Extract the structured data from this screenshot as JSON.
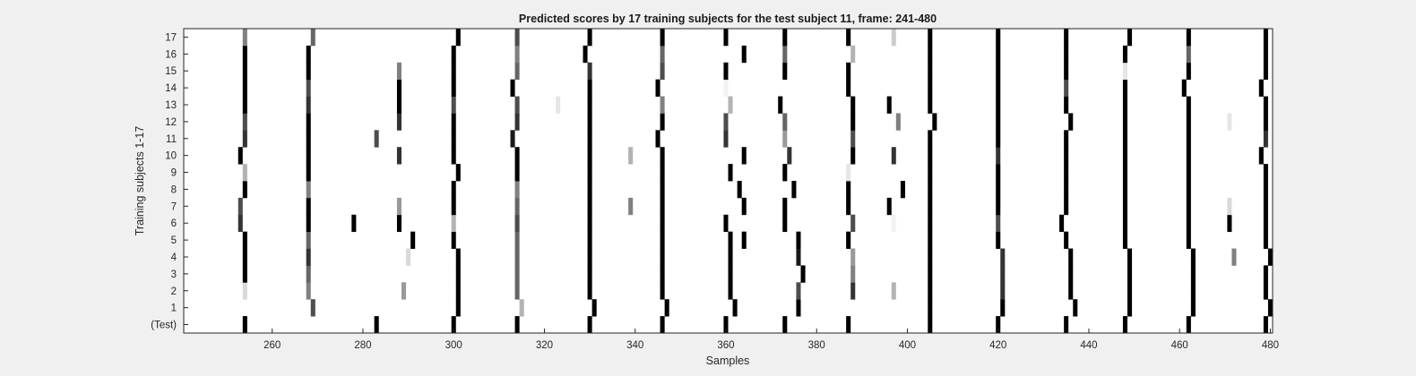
{
  "chart_data": {
    "type": "heatmap",
    "title": "Predicted scores by 17 training subjects for the test subject 11, frame: 241-480",
    "xlabel": "Samples",
    "ylabel": "Training subjects 1-17",
    "xlim": [
      241,
      480
    ],
    "x_ticks": [
      260,
      280,
      300,
      320,
      340,
      360,
      380,
      400,
      420,
      440,
      460,
      480
    ],
    "y_categories": [
      "(Test)",
      "1",
      "2",
      "3",
      "4",
      "5",
      "6",
      "7",
      "8",
      "9",
      "10",
      "11",
      "12",
      "13",
      "14",
      "15",
      "16",
      "17"
    ],
    "colormap": "white (0) to black (1)",
    "background_value": 0,
    "cells": [
      [
        0,
        254,
        1.0
      ],
      [
        0,
        283,
        1.0
      ],
      [
        0,
        300,
        1.0
      ],
      [
        0,
        314,
        1.0
      ],
      [
        0,
        330,
        1.0
      ],
      [
        0,
        346,
        1.0
      ],
      [
        0,
        360,
        1.0
      ],
      [
        0,
        373,
        1.0
      ],
      [
        0,
        387,
        1.0
      ],
      [
        0,
        405,
        1.0
      ],
      [
        0,
        420,
        1.0
      ],
      [
        0,
        435,
        1.0
      ],
      [
        0,
        448,
        1.0
      ],
      [
        0,
        462,
        1.0
      ],
      [
        0,
        479,
        1.0
      ],
      [
        1,
        269,
        0.7
      ],
      [
        1,
        301,
        1.0
      ],
      [
        1,
        315,
        0.3
      ],
      [
        1,
        331,
        1.0
      ],
      [
        1,
        347,
        1.0
      ],
      [
        1,
        362,
        1.0
      ],
      [
        1,
        376,
        1.0
      ],
      [
        1,
        405,
        1.0
      ],
      [
        1,
        421,
        1.0
      ],
      [
        1,
        437,
        1.0
      ],
      [
        1,
        449,
        1.0
      ],
      [
        1,
        463,
        1.0
      ],
      [
        1,
        480,
        1.0
      ],
      [
        2,
        254,
        0.15
      ],
      [
        2,
        268,
        0.5
      ],
      [
        2,
        289,
        0.4
      ],
      [
        2,
        301,
        1.0
      ],
      [
        2,
        314,
        0.6
      ],
      [
        2,
        330,
        1.0
      ],
      [
        2,
        346,
        1.0
      ],
      [
        2,
        361,
        1.0
      ],
      [
        2,
        376,
        0.7
      ],
      [
        2,
        388,
        0.8
      ],
      [
        2,
        397,
        0.3
      ],
      [
        2,
        405,
        1.0
      ],
      [
        2,
        421,
        0.8
      ],
      [
        2,
        436,
        1.0
      ],
      [
        2,
        449,
        1.0
      ],
      [
        2,
        463,
        1.0
      ],
      [
        2,
        479,
        1.0
      ],
      [
        3,
        254,
        1.0
      ],
      [
        3,
        268,
        0.6
      ],
      [
        3,
        301,
        1.0
      ],
      [
        3,
        314,
        0.6
      ],
      [
        3,
        330,
        1.0
      ],
      [
        3,
        346,
        1.0
      ],
      [
        3,
        361,
        1.0
      ],
      [
        3,
        377,
        1.0
      ],
      [
        3,
        388,
        0.5
      ],
      [
        3,
        405,
        1.0
      ],
      [
        3,
        421,
        0.8
      ],
      [
        3,
        436,
        1.0
      ],
      [
        3,
        449,
        1.0
      ],
      [
        3,
        463,
        1.0
      ],
      [
        3,
        479,
        1.0
      ],
      [
        4,
        254,
        1.0
      ],
      [
        4,
        268,
        0.8
      ],
      [
        4,
        290,
        0.15
      ],
      [
        4,
        301,
        1.0
      ],
      [
        4,
        314,
        0.6
      ],
      [
        4,
        330,
        1.0
      ],
      [
        4,
        346,
        1.0
      ],
      [
        4,
        361,
        1.0
      ],
      [
        4,
        376,
        0.9
      ],
      [
        4,
        388,
        0.4
      ],
      [
        4,
        405,
        1.0
      ],
      [
        4,
        421,
        0.8
      ],
      [
        4,
        436,
        1.0
      ],
      [
        4,
        449,
        1.0
      ],
      [
        4,
        463,
        1.0
      ],
      [
        4,
        472,
        0.5
      ],
      [
        4,
        480,
        1.0
      ],
      [
        5,
        254,
        1.0
      ],
      [
        5,
        268,
        0.6
      ],
      [
        5,
        291,
        1.0
      ],
      [
        5,
        300,
        1.0
      ],
      [
        5,
        314,
        0.6
      ],
      [
        5,
        330,
        1.0
      ],
      [
        5,
        346,
        1.0
      ],
      [
        5,
        361,
        1.0
      ],
      [
        5,
        364,
        1.0
      ],
      [
        5,
        376,
        1.0
      ],
      [
        5,
        387,
        1.0
      ],
      [
        5,
        405,
        1.0
      ],
      [
        5,
        420,
        1.0
      ],
      [
        5,
        435,
        1.0
      ],
      [
        5,
        448,
        1.0
      ],
      [
        5,
        462,
        1.0
      ],
      [
        5,
        479,
        1.0
      ],
      [
        6,
        253,
        0.8
      ],
      [
        6,
        268,
        1.0
      ],
      [
        6,
        278,
        1.0
      ],
      [
        6,
        288,
        1.0
      ],
      [
        6,
        300,
        0.3
      ],
      [
        6,
        314,
        0.7
      ],
      [
        6,
        330,
        1.0
      ],
      [
        6,
        346,
        1.0
      ],
      [
        6,
        360,
        1.0
      ],
      [
        6,
        373,
        1.0
      ],
      [
        6,
        388,
        0.7
      ],
      [
        6,
        397,
        0.05
      ],
      [
        6,
        405,
        1.0
      ],
      [
        6,
        420,
        0.7
      ],
      [
        6,
        434,
        1.0
      ],
      [
        6,
        448,
        1.0
      ],
      [
        6,
        462,
        1.0
      ],
      [
        6,
        471,
        1.0
      ],
      [
        6,
        479,
        1.0
      ],
      [
        7,
        253,
        0.7
      ],
      [
        7,
        268,
        1.0
      ],
      [
        7,
        288,
        0.4
      ],
      [
        7,
        300,
        1.0
      ],
      [
        7,
        314,
        0.6
      ],
      [
        7,
        330,
        1.0
      ],
      [
        7,
        339,
        0.5
      ],
      [
        7,
        346,
        1.0
      ],
      [
        7,
        364,
        1.0
      ],
      [
        7,
        373,
        1.0
      ],
      [
        7,
        387,
        1.0
      ],
      [
        7,
        396,
        1.0
      ],
      [
        7,
        405,
        1.0
      ],
      [
        7,
        420,
        1.0
      ],
      [
        7,
        435,
        1.0
      ],
      [
        7,
        448,
        1.0
      ],
      [
        7,
        462,
        1.0
      ],
      [
        7,
        471,
        0.15
      ],
      [
        7,
        479,
        1.0
      ],
      [
        8,
        254,
        1.0
      ],
      [
        8,
        268,
        0.5
      ],
      [
        8,
        300,
        1.0
      ],
      [
        8,
        314,
        0.5
      ],
      [
        8,
        330,
        1.0
      ],
      [
        8,
        346,
        1.0
      ],
      [
        8,
        363,
        1.0
      ],
      [
        8,
        375,
        1.0
      ],
      [
        8,
        387,
        1.0
      ],
      [
        8,
        399,
        1.0
      ],
      [
        8,
        405,
        1.0
      ],
      [
        8,
        420,
        1.0
      ],
      [
        8,
        435,
        1.0
      ],
      [
        8,
        448,
        1.0
      ],
      [
        8,
        462,
        1.0
      ],
      [
        8,
        479,
        1.0
      ],
      [
        9,
        254,
        0.3
      ],
      [
        9,
        268,
        1.0
      ],
      [
        9,
        301,
        1.0
      ],
      [
        9,
        314,
        1.0
      ],
      [
        9,
        330,
        1.0
      ],
      [
        9,
        346,
        1.0
      ],
      [
        9,
        361,
        1.0
      ],
      [
        9,
        373,
        1.0
      ],
      [
        9,
        387,
        0.1
      ],
      [
        9,
        405,
        1.0
      ],
      [
        9,
        420,
        1.0
      ],
      [
        9,
        435,
        1.0
      ],
      [
        9,
        448,
        1.0
      ],
      [
        9,
        462,
        1.0
      ],
      [
        9,
        479,
        1.0
      ],
      [
        10,
        253,
        1.0
      ],
      [
        10,
        268,
        1.0
      ],
      [
        10,
        288,
        0.8
      ],
      [
        10,
        300,
        1.0
      ],
      [
        10,
        314,
        1.0
      ],
      [
        10,
        330,
        1.0
      ],
      [
        10,
        339,
        0.3
      ],
      [
        10,
        346,
        1.0
      ],
      [
        10,
        364,
        1.0
      ],
      [
        10,
        374,
        0.8
      ],
      [
        10,
        388,
        1.0
      ],
      [
        10,
        397,
        0.8
      ],
      [
        10,
        405,
        1.0
      ],
      [
        10,
        420,
        0.8
      ],
      [
        10,
        435,
        1.0
      ],
      [
        10,
        448,
        1.0
      ],
      [
        10,
        462,
        1.0
      ],
      [
        10,
        478,
        1.0
      ],
      [
        11,
        254,
        0.8
      ],
      [
        11,
        268,
        1.0
      ],
      [
        11,
        283,
        0.7
      ],
      [
        11,
        300,
        1.0
      ],
      [
        11,
        313,
        0.9
      ],
      [
        11,
        330,
        1.0
      ],
      [
        11,
        345,
        1.0
      ],
      [
        11,
        360,
        0.8
      ],
      [
        11,
        373,
        0.4
      ],
      [
        11,
        388,
        0.7
      ],
      [
        11,
        405,
        1.0
      ],
      [
        11,
        420,
        1.0
      ],
      [
        11,
        435,
        1.0
      ],
      [
        11,
        448,
        1.0
      ],
      [
        11,
        462,
        1.0
      ],
      [
        11,
        479,
        0.8
      ],
      [
        12,
        254,
        0.7
      ],
      [
        12,
        268,
        1.0
      ],
      [
        12,
        288,
        0.8
      ],
      [
        12,
        300,
        1.0
      ],
      [
        12,
        314,
        0.8
      ],
      [
        12,
        330,
        1.0
      ],
      [
        12,
        346,
        1.0
      ],
      [
        12,
        360,
        0.7
      ],
      [
        12,
        373,
        0.6
      ],
      [
        12,
        388,
        1.0
      ],
      [
        12,
        398,
        0.5
      ],
      [
        12,
        406,
        1.0
      ],
      [
        12,
        420,
        1.0
      ],
      [
        12,
        436,
        1.0
      ],
      [
        12,
        448,
        1.0
      ],
      [
        12,
        462,
        1.0
      ],
      [
        12,
        471,
        0.1
      ],
      [
        12,
        479,
        1.0
      ],
      [
        13,
        254,
        1.0
      ],
      [
        13,
        268,
        0.8
      ],
      [
        13,
        288,
        1.0
      ],
      [
        13,
        300,
        0.7
      ],
      [
        13,
        314,
        0.7
      ],
      [
        13,
        323,
        0.1
      ],
      [
        13,
        330,
        1.0
      ],
      [
        13,
        346,
        0.5
      ],
      [
        13,
        361,
        0.3
      ],
      [
        13,
        372,
        1.0
      ],
      [
        13,
        388,
        1.0
      ],
      [
        13,
        396,
        1.0
      ],
      [
        13,
        405,
        1.0
      ],
      [
        13,
        420,
        1.0
      ],
      [
        13,
        435,
        1.0
      ],
      [
        13,
        448,
        1.0
      ],
      [
        13,
        462,
        1.0
      ],
      [
        13,
        479,
        1.0
      ],
      [
        14,
        254,
        1.0
      ],
      [
        14,
        268,
        0.7
      ],
      [
        14,
        288,
        1.0
      ],
      [
        14,
        300,
        1.0
      ],
      [
        14,
        313,
        1.0
      ],
      [
        14,
        330,
        1.0
      ],
      [
        14,
        345,
        1.0
      ],
      [
        14,
        360,
        0.05
      ],
      [
        14,
        387,
        1.0
      ],
      [
        14,
        405,
        1.0
      ],
      [
        14,
        420,
        1.0
      ],
      [
        14,
        435,
        0.7
      ],
      [
        14,
        448,
        1.0
      ],
      [
        14,
        461,
        1.0
      ],
      [
        14,
        478,
        1.0
      ],
      [
        15,
        254,
        1.0
      ],
      [
        15,
        268,
        1.0
      ],
      [
        15,
        288,
        0.5
      ],
      [
        15,
        300,
        1.0
      ],
      [
        15,
        314,
        0.6
      ],
      [
        15,
        330,
        0.8
      ],
      [
        15,
        346,
        0.7
      ],
      [
        15,
        360,
        1.0
      ],
      [
        15,
        373,
        1.0
      ],
      [
        15,
        387,
        1.0
      ],
      [
        15,
        405,
        1.0
      ],
      [
        15,
        420,
        1.0
      ],
      [
        15,
        435,
        1.0
      ],
      [
        15,
        448,
        0.1
      ],
      [
        15,
        462,
        1.0
      ],
      [
        15,
        479,
        1.0
      ],
      [
        16,
        254,
        1.0
      ],
      [
        16,
        268,
        1.0
      ],
      [
        16,
        300,
        1.0
      ],
      [
        16,
        314,
        0.5
      ],
      [
        16,
        329,
        1.0
      ],
      [
        16,
        346,
        0.6
      ],
      [
        16,
        364,
        1.0
      ],
      [
        16,
        373,
        0.6
      ],
      [
        16,
        388,
        0.3
      ],
      [
        16,
        405,
        1.0
      ],
      [
        16,
        420,
        1.0
      ],
      [
        16,
        435,
        1.0
      ],
      [
        16,
        448,
        1.0
      ],
      [
        16,
        462,
        0.6
      ],
      [
        16,
        479,
        1.0
      ],
      [
        17,
        254,
        0.5
      ],
      [
        17,
        269,
        0.6
      ],
      [
        17,
        301,
        1.0
      ],
      [
        17,
        314,
        0.7
      ],
      [
        17,
        330,
        1.0
      ],
      [
        17,
        346,
        1.0
      ],
      [
        17,
        360,
        1.0
      ],
      [
        17,
        373,
        1.0
      ],
      [
        17,
        387,
        1.0
      ],
      [
        17,
        397,
        0.2
      ],
      [
        17,
        405,
        1.0
      ],
      [
        17,
        420,
        1.0
      ],
      [
        17,
        435,
        1.0
      ],
      [
        17,
        449,
        1.0
      ],
      [
        17,
        462,
        1.0
      ],
      [
        17,
        479,
        1.0
      ]
    ]
  }
}
